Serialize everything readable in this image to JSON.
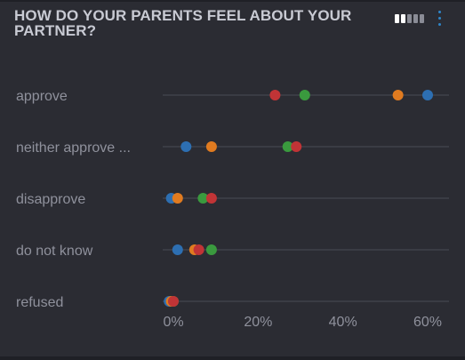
{
  "title": "HOW DO YOUR PARENTS FEEL ABOUT YOUR PARTNER?",
  "pager": {
    "pages": 5,
    "active": 2
  },
  "colors": {
    "background": "#2b2c33",
    "gridline": "#4a4c55",
    "text": "#8f919c",
    "title": "#c8cad3",
    "menu": "#2f86c9"
  },
  "menu_icon": "vertical-dots-icon",
  "chart_data": {
    "type": "dot",
    "title": "HOW DO YOUR PARENTS FEEL ABOUT YOUR PARTNER?",
    "xlabel": "",
    "ylabel": "",
    "categories": [
      "approve",
      "neither approve ...",
      "disapprove",
      "do not know",
      "refused"
    ],
    "xlim": [
      -3,
      63
    ],
    "xticks": [
      0,
      20,
      40,
      60
    ],
    "tick_labels": [
      "0%",
      "20%",
      "40%",
      "60%"
    ],
    "grid": false,
    "legend": "none",
    "series": [
      {
        "color": "#2d6fb2",
        "values": [
          60,
          3,
          -0.5,
          1,
          -1
        ]
      },
      {
        "color": "#e07b20",
        "values": [
          53,
          9,
          1,
          5,
          -0.5
        ]
      },
      {
        "color": "#3a9a3e",
        "values": [
          31,
          27,
          7,
          9,
          0
        ]
      },
      {
        "color": "#c13436",
        "values": [
          24,
          29,
          9,
          6,
          0
        ]
      }
    ]
  }
}
